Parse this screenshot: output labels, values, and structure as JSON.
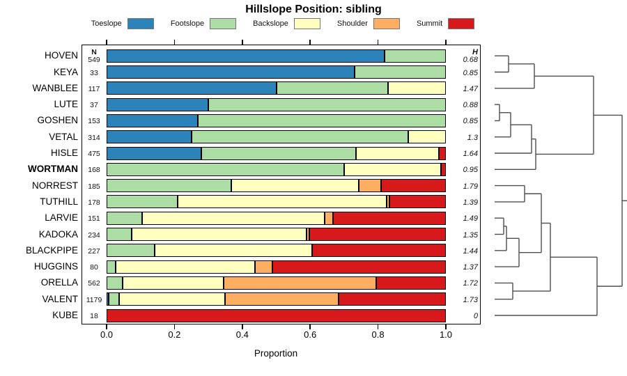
{
  "title": "Hillslope Position: sibling",
  "legend": {
    "items": [
      {
        "label": "Toeslope",
        "color": "#2B83BA"
      },
      {
        "label": "Footslope",
        "color": "#ABDDA4"
      },
      {
        "label": "Backslope",
        "color": "#FFFFBF"
      },
      {
        "label": "Shoulder",
        "color": "#FDAE61"
      },
      {
        "label": "Summit",
        "color": "#D7191C"
      }
    ]
  },
  "columns": {
    "n_header": "N",
    "h_header": "H"
  },
  "x_axis": {
    "label": "Proportion",
    "ticks": [
      "0.0",
      "0.2",
      "0.4",
      "0.6",
      "0.8",
      "1.0"
    ],
    "range": [
      0,
      1
    ]
  },
  "chart_data": {
    "type": "bar",
    "stacked": true,
    "orientation": "horizontal",
    "title": "Hillslope Position: sibling",
    "xlabel": "Proportion",
    "xlim": [
      0,
      1
    ],
    "grid": false,
    "categories": [
      "Toeslope",
      "Footslope",
      "Backslope",
      "Shoulder",
      "Summit"
    ],
    "colors": [
      "#2B83BA",
      "#ABDDA4",
      "#FFFFBF",
      "#FDAE61",
      "#D7191C"
    ],
    "rows": [
      {
        "name": "HOVEN",
        "n": "549",
        "h": "0.68",
        "highlight": false,
        "values": [
          0.82,
          0.18,
          0,
          0,
          0
        ]
      },
      {
        "name": "KEYA",
        "n": "33",
        "h": "0.85",
        "highlight": false,
        "values": [
          0.73,
          0.27,
          0,
          0,
          0
        ]
      },
      {
        "name": "WANBLEE",
        "n": "117",
        "h": "1.47",
        "highlight": false,
        "values": [
          0.5,
          0.33,
          0.17,
          0,
          0
        ]
      },
      {
        "name": "LUTE",
        "n": "37",
        "h": "0.88",
        "highlight": false,
        "values": [
          0.3,
          0.7,
          0,
          0,
          0
        ]
      },
      {
        "name": "GOSHEN",
        "n": "153",
        "h": "0.85",
        "highlight": false,
        "values": [
          0.27,
          0.73,
          0,
          0,
          0
        ]
      },
      {
        "name": "VETAL",
        "n": "314",
        "h": "1.3",
        "highlight": false,
        "values": [
          0.25,
          0.64,
          0.11,
          0,
          0
        ]
      },
      {
        "name": "HISLE",
        "n": "475",
        "h": "1.64",
        "highlight": false,
        "values": [
          0.28,
          0.455,
          0.245,
          0,
          0.02
        ]
      },
      {
        "name": "WORTMAN",
        "n": "168",
        "h": "0.95",
        "highlight": true,
        "values": [
          0,
          0.7,
          0.285,
          0,
          0.015
        ]
      },
      {
        "name": "NORREST",
        "n": "185",
        "h": "1.79",
        "highlight": false,
        "values": [
          0,
          0.368,
          0.375,
          0.067,
          0.19
        ]
      },
      {
        "name": "TUTHILL",
        "n": "178",
        "h": "1.39",
        "highlight": false,
        "values": [
          0,
          0.21,
          0.615,
          0.008,
          0.167
        ]
      },
      {
        "name": "LARVIE",
        "n": "151",
        "h": "1.49",
        "highlight": false,
        "values": [
          0,
          0.105,
          0.537,
          0.026,
          0.332
        ]
      },
      {
        "name": "KADOKA",
        "n": "234",
        "h": "1.35",
        "highlight": false,
        "values": [
          0,
          0.073,
          0.516,
          0.009,
          0.402
        ]
      },
      {
        "name": "BLACKPIPE",
        "n": "227",
        "h": "1.44",
        "highlight": false,
        "values": [
          0,
          0.141,
          0.464,
          0,
          0.395
        ]
      },
      {
        "name": "HUGGINS",
        "n": "80",
        "h": "1.37",
        "highlight": false,
        "values": [
          0,
          0.027,
          0.411,
          0.051,
          0.511
        ]
      },
      {
        "name": "ORELLA",
        "n": "562",
        "h": "1.72",
        "highlight": false,
        "values": [
          0,
          0.048,
          0.296,
          0.451,
          0.205
        ]
      },
      {
        "name": "VALENT",
        "n": "1179",
        "h": "1.73",
        "highlight": false,
        "values": [
          0.006,
          0.031,
          0.313,
          0.334,
          0.316
        ]
      },
      {
        "name": "KUBE",
        "n": "18",
        "h": "0",
        "highlight": false,
        "values": [
          0,
          0,
          0,
          0,
          1.0
        ]
      }
    ]
  },
  "dendrogram": {
    "leaf_start_x": 710,
    "root_end_x": 902,
    "merges": [
      {
        "id": "M1",
        "a": "HOVEN",
        "b": "KEYA",
        "x": 730
      },
      {
        "id": "M2",
        "a": "M1",
        "b": "WANBLEE",
        "x": 767
      },
      {
        "id": "M3",
        "a": "LUTE",
        "b": "GOSHEN",
        "x": 717
      },
      {
        "id": "M4",
        "a": "M3",
        "b": "VETAL",
        "x": 733
      },
      {
        "id": "M5",
        "a": "M4",
        "b": "HISLE",
        "x": 763
      },
      {
        "id": "M6",
        "a": "M5",
        "b": "WORTMAN",
        "x": 769
      },
      {
        "id": "M7",
        "a": "M2",
        "b": "M6",
        "x": 852
      },
      {
        "id": "M8",
        "a": "NORREST",
        "b": "TUTHILL",
        "x": 753
      },
      {
        "id": "M9",
        "a": "LARVIE",
        "b": "KADOKA",
        "x": 723
      },
      {
        "id": "M10",
        "a": "M9",
        "b": "BLACKPIPE",
        "x": 727
      },
      {
        "id": "M11",
        "a": "M10",
        "b": "HUGGINS",
        "x": 745
      },
      {
        "id": "M12",
        "a": "M8",
        "b": "M11",
        "x": 777
      },
      {
        "id": "M13",
        "a": "ORELLA",
        "b": "VALENT",
        "x": 736
      },
      {
        "id": "M14",
        "a": "M12",
        "b": "M13",
        "x": 790
      },
      {
        "id": "M15",
        "a": "M14",
        "b": "KUBE",
        "x": 857
      },
      {
        "id": "M16",
        "a": "M7",
        "b": "M15",
        "x": 893
      }
    ]
  }
}
